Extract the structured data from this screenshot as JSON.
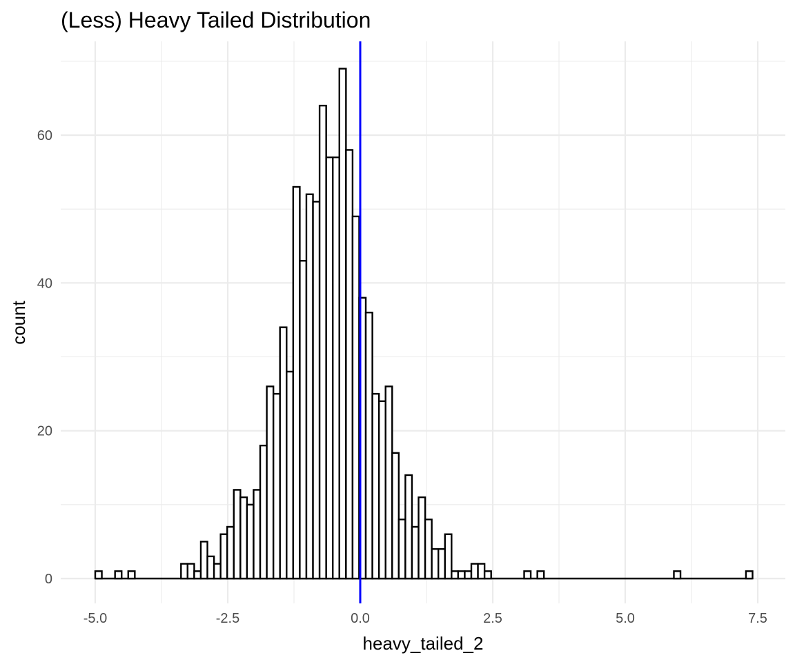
{
  "chart_data": {
    "type": "bar",
    "subtype": "histogram",
    "title": "(Less) Heavy Tailed Distribution",
    "xlabel": "heavy_tailed_2",
    "ylabel": "count",
    "xlim": [
      -5.25,
      7.6
    ],
    "ylim": [
      -3.5,
      72
    ],
    "x_ticks": [
      -5.0,
      -2.5,
      0.0,
      2.5,
      5.0,
      7.5
    ],
    "x_tick_labels": [
      "-5.0",
      "-2.5",
      "0.0",
      "2.5",
      "5.0",
      "7.5"
    ],
    "y_ticks": [
      0,
      20,
      40,
      60
    ],
    "y_tick_labels": [
      "0",
      "20",
      "40",
      "60"
    ],
    "grid": true,
    "bin_start": -5.0,
    "bin_width": 0.1245,
    "counts": [
      1,
      0,
      0,
      1,
      0,
      1,
      0,
      0,
      0,
      0,
      0,
      0,
      0,
      2,
      2,
      1,
      5,
      3,
      2,
      6,
      7,
      12,
      11,
      10,
      12,
      18,
      26,
      25,
      34,
      28,
      53,
      43,
      52,
      51,
      64,
      57,
      57,
      69,
      58,
      49,
      38,
      36,
      25,
      24,
      26,
      17,
      8,
      14,
      7,
      11,
      8,
      4,
      4,
      6,
      1,
      1,
      1,
      2,
      2,
      1,
      0,
      0,
      0,
      0,
      0,
      1,
      0,
      1,
      0,
      0,
      0,
      0,
      0,
      0,
      0,
      0,
      0,
      0,
      0,
      0,
      0,
      0,
      0,
      0,
      0,
      0,
      0,
      0,
      0,
      0,
      0,
      0,
      0,
      0,
      0,
      0,
      0,
      0,
      0,
      0,
      0,
      0,
      0,
      0,
      0,
      0,
      0,
      0,
      0,
      0,
      0,
      0,
      0,
      0,
      0,
      0,
      0,
      0,
      0,
      0,
      0,
      0,
      0,
      0,
      0,
      0,
      0,
      0,
      0,
      0,
      0,
      0,
      0,
      0,
      0,
      0,
      0,
      0,
      0,
      0
    ],
    "sparse_bins": [
      {
        "x": 5.98,
        "count": 1
      },
      {
        "x": 7.34,
        "count": 1
      }
    ],
    "vline_x": 0.0,
    "vline_color": "#0000ff",
    "bar_fill": "#ffffff",
    "bar_stroke": "#000000"
  }
}
